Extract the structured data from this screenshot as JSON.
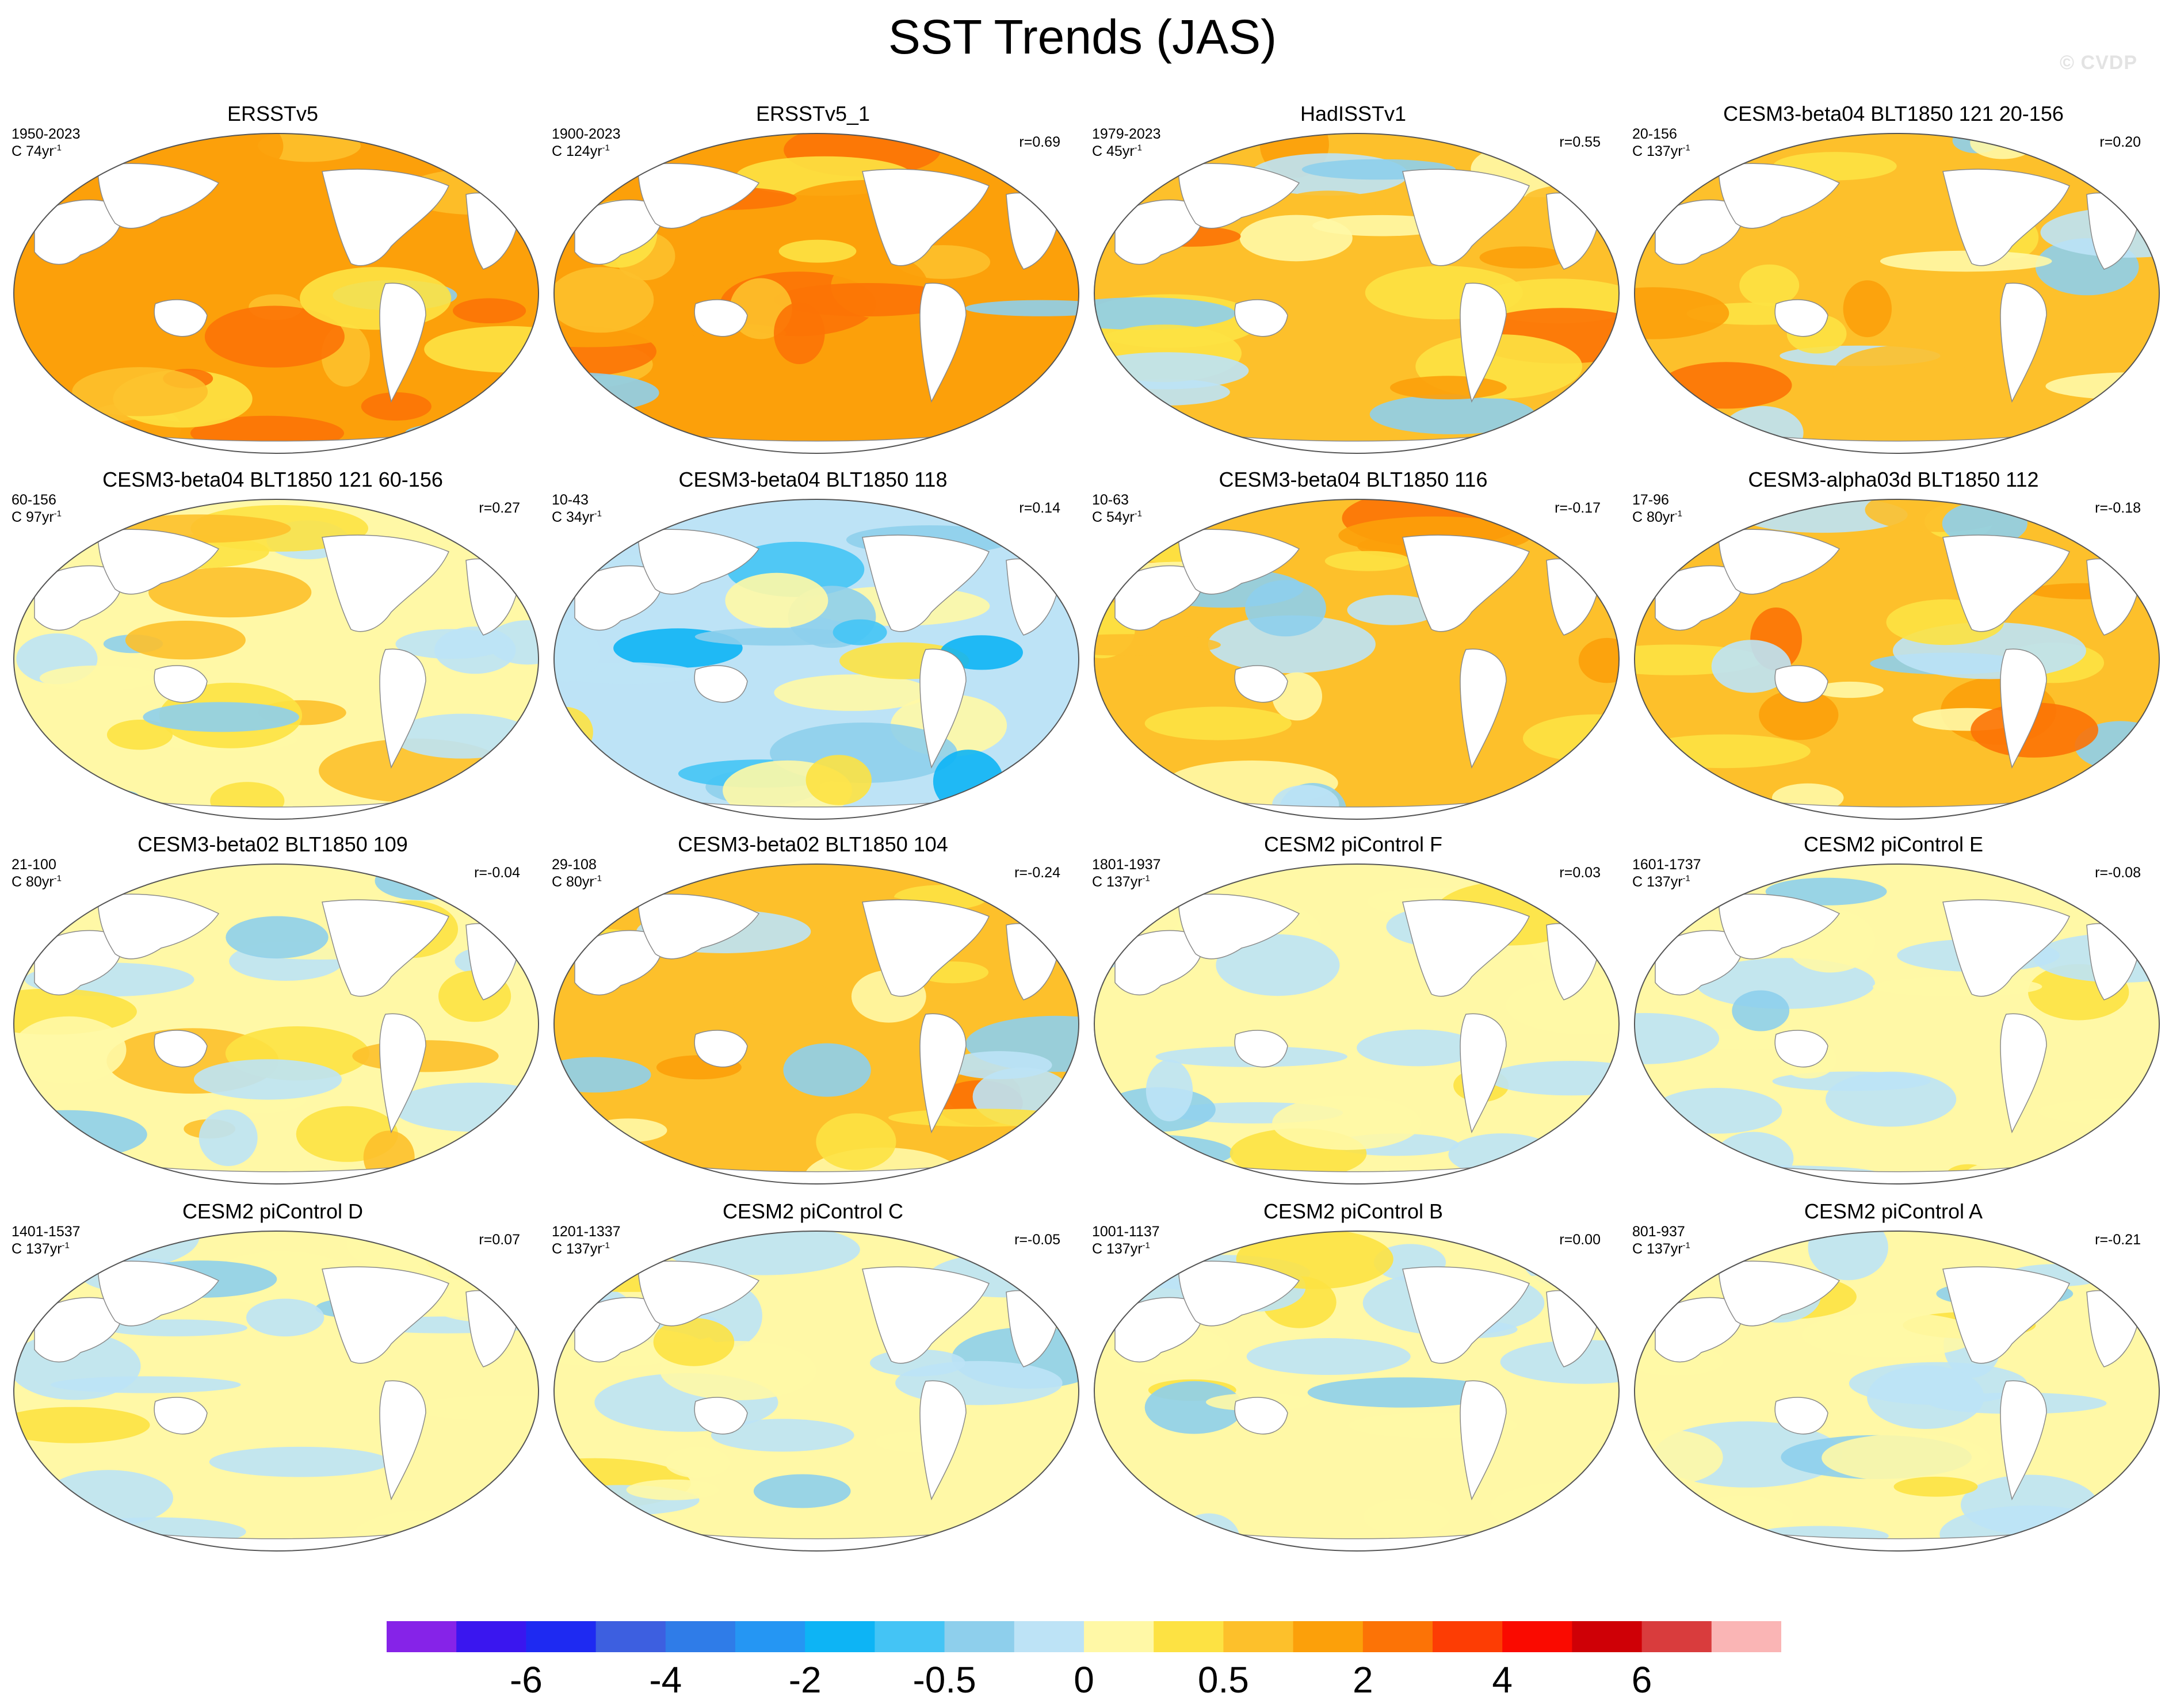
{
  "figure": {
    "title": "SST Trends (JAS)",
    "watermark": "© CVDP",
    "trend_suffix": "yr",
    "trend_exponent": "-1"
  },
  "chart_data": {
    "type": "heatmap",
    "projection": "Robinson, centered on 180°, global ocean",
    "variable": "SST trend (JAS), colour-filled contours",
    "layout": {
      "rows": 4,
      "cols": 4
    },
    "panels": [
      {
        "title": "ERSSTv5",
        "years": "1950-2023",
        "ntrend": "C 74",
        "corr": "",
        "pattern": "uniform-warming"
      },
      {
        "title": "ERSSTv5_1",
        "years": "1900-2023",
        "ntrend": "C 124",
        "corr": "r=0.69",
        "pattern": "uniform-warming"
      },
      {
        "title": "HadISSTv1",
        "years": "1979-2023",
        "ntrend": "C 45",
        "corr": "r=0.55",
        "pattern": "warming-mixed"
      },
      {
        "title": "CESM3-beta04 BLT1850 121 20-156",
        "years": "20-156",
        "ntrend": "C 137",
        "corr": "r=0.20",
        "pattern": "warming-mixed"
      },
      {
        "title": "CESM3-beta04 BLT1850 121 60-156",
        "years": "60-156",
        "ntrend": "C 97",
        "corr": "r=0.27",
        "pattern": "weak-warming"
      },
      {
        "title": "CESM3-beta04 BLT1850 118",
        "years": "10-43",
        "ntrend": "C 34",
        "corr": "r=0.14",
        "pattern": "cooling"
      },
      {
        "title": "CESM3-beta04 BLT1850 116",
        "years": "10-63",
        "ntrend": "C 54",
        "corr": "r=-0.17",
        "pattern": "warming-mixed"
      },
      {
        "title": "CESM3-alpha03d BLT1850 112",
        "years": "17-96",
        "ntrend": "C 80",
        "corr": "r=-0.18",
        "pattern": "warming-mixed"
      },
      {
        "title": "CESM3-beta02 BLT1850 109",
        "years": "21-100",
        "ntrend": "C 80",
        "corr": "r=-0.04",
        "pattern": "weak-warming"
      },
      {
        "title": "CESM3-beta02 BLT1850 104",
        "years": "29-108",
        "ntrend": "C 80",
        "corr": "r=-0.24",
        "pattern": "warming-mixed"
      },
      {
        "title": "CESM2 piControl F",
        "years": "1801-1937",
        "ntrend": "C 137",
        "corr": "r=0.03",
        "pattern": "neutral"
      },
      {
        "title": "CESM2 piControl E",
        "years": "1601-1737",
        "ntrend": "C 137",
        "corr": "r=-0.08",
        "pattern": "neutral"
      },
      {
        "title": "CESM2 piControl D",
        "years": "1401-1537",
        "ntrend": "C 137",
        "corr": "r=0.07",
        "pattern": "neutral"
      },
      {
        "title": "CESM2 piControl C",
        "years": "1201-1337",
        "ntrend": "C 137",
        "corr": "r=-0.05",
        "pattern": "neutral"
      },
      {
        "title": "CESM2 piControl B",
        "years": "1001-1137",
        "ntrend": "C 137",
        "corr": "r=0.00",
        "pattern": "neutral"
      },
      {
        "title": "CESM2 piControl A",
        "years": "801-937",
        "ntrend": "C 137",
        "corr": "r=-0.21",
        "pattern": "neutral"
      }
    ],
    "colorbar": {
      "colors": [
        "#8623e8",
        "#3a16ef",
        "#1e2af2",
        "#3d5fe0",
        "#2f7ce8",
        "#2596f3",
        "#0db4f5",
        "#44c4f5",
        "#8ecfec",
        "#bde3f6",
        "#fff8a6",
        "#fde243",
        "#fdc02b",
        "#fca00a",
        "#fc7306",
        "#fd3d04",
        "#fa0a00",
        "#cf0006",
        "#d93c3d",
        "#fab5b5"
      ],
      "labels": [
        {
          "text": "-6",
          "boundary": 2
        },
        {
          "text": "-4",
          "boundary": 4
        },
        {
          "text": "-2",
          "boundary": 6
        },
        {
          "text": "-0.5",
          "boundary": 8
        },
        {
          "text": "0",
          "boundary": 10
        },
        {
          "text": "0.5",
          "boundary": 12
        },
        {
          "text": "2",
          "boundary": 14
        },
        {
          "text": "4",
          "boundary": 16
        },
        {
          "text": "6",
          "boundary": 18
        }
      ]
    }
  }
}
